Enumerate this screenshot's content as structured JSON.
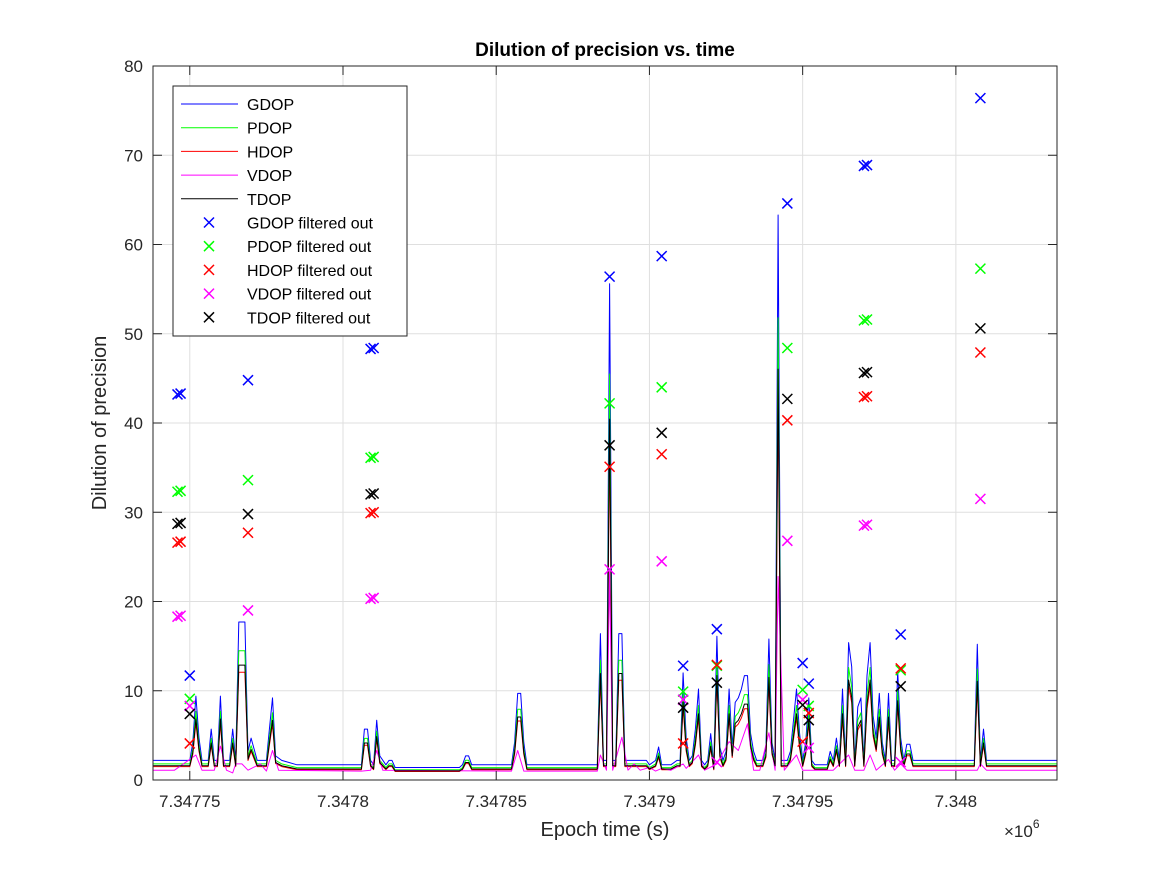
{
  "chart_data": {
    "type": "line",
    "title": "Dilution of precision vs. time",
    "xlabel": "Epoch time (s)",
    "ylabel": "Dilution of precision",
    "x_exponent_label": "×10",
    "x_exponent_power": "6",
    "x_scale": 1000000,
    "xlim": [
      7.347738,
      7.348033
    ],
    "ylim": [
      0,
      80
    ],
    "grid": true,
    "legend_position": "top-left",
    "x_ticks": [
      7.34775,
      7.3478,
      7.34785,
      7.3479,
      7.34795,
      7.348
    ],
    "x_tick_labels": [
      "7.34775",
      "7.3478",
      "7.34785",
      "7.3479",
      "7.34795",
      "7.348"
    ],
    "y_ticks": [
      0,
      10,
      20,
      30,
      40,
      50,
      60,
      70,
      80
    ],
    "y_tick_labels": [
      "0",
      "10",
      "20",
      "30",
      "40",
      "50",
      "60",
      "70",
      "80"
    ],
    "series": [
      {
        "name": "GDOP",
        "kind": "line",
        "color": "#0000ff",
        "ref": "GDOP",
        "base": 2.2
      },
      {
        "name": "PDOP",
        "kind": "line",
        "color": "#00ff00",
        "ref": "GDOP",
        "base": 1.8
      },
      {
        "name": "HDOP",
        "kind": "line",
        "color": "#ff0000",
        "ref": "GDOP",
        "base": 1.5
      },
      {
        "name": "VDOP",
        "kind": "line",
        "color": "#ff00ff",
        "ref": "VDOP",
        "base": 1.1
      },
      {
        "name": "TDOP",
        "kind": "line",
        "color": "#000000",
        "ref": "GDOP",
        "base": 1.6
      },
      {
        "name": "GDOP filtered out",
        "kind": "marker",
        "color": "#0000ff",
        "x": [
          7.347746,
          7.347747,
          7.34775,
          7.347769,
          7.347809,
          7.34781,
          7.347887,
          7.347904,
          7.347911,
          7.347922,
          7.347945,
          7.34795,
          7.347952,
          7.34797,
          7.347971,
          7.347982,
          7.348008
        ],
        "y": [
          43.2,
          43.3,
          11.7,
          44.8,
          48.3,
          48.4,
          56.4,
          58.7,
          12.8,
          16.9,
          64.6,
          13.1,
          10.8,
          68.8,
          68.9,
          16.3,
          76.4
        ]
      },
      {
        "name": "PDOP filtered out",
        "kind": "marker",
        "color": "#00ff00",
        "x": [
          7.347746,
          7.347747,
          7.34775,
          7.347769,
          7.347809,
          7.34781,
          7.347887,
          7.347904,
          7.347911,
          7.347922,
          7.347945,
          7.34795,
          7.347952,
          7.34797,
          7.347971,
          7.347982,
          7.348008
        ],
        "y": [
          32.3,
          32.4,
          9.1,
          33.6,
          36.1,
          36.2,
          42.2,
          44.0,
          9.9,
          12.8,
          48.4,
          10.1,
          8.3,
          51.5,
          51.6,
          12.3,
          57.3
        ]
      },
      {
        "name": "HDOP filtered out",
        "kind": "marker",
        "color": "#ff0000",
        "x": [
          7.347746,
          7.347747,
          7.34775,
          7.347769,
          7.347809,
          7.34781,
          7.347887,
          7.347904,
          7.347911,
          7.347922,
          7.347945,
          7.34795,
          7.347952,
          7.34797,
          7.347971,
          7.347982,
          7.348008
        ],
        "y": [
          26.6,
          26.7,
          4.1,
          27.7,
          29.9,
          30.0,
          35.1,
          36.5,
          4.1,
          12.9,
          40.3,
          4.3,
          7.5,
          42.9,
          43.0,
          12.5,
          47.9
        ]
      },
      {
        "name": "VDOP filtered out",
        "kind": "marker",
        "color": "#ff00ff",
        "x": [
          7.347746,
          7.347747,
          7.34775,
          7.347769,
          7.347809,
          7.34781,
          7.347887,
          7.347904,
          7.347911,
          7.347922,
          7.347945,
          7.34795,
          7.347952,
          7.34797,
          7.347971,
          7.347982,
          7.348008
        ],
        "y": [
          18.3,
          18.4,
          8.3,
          19.0,
          20.3,
          20.4,
          23.6,
          24.5,
          9.0,
          2.0,
          26.8,
          9.0,
          3.6,
          28.5,
          28.6,
          2.0,
          31.5
        ]
      },
      {
        "name": "TDOP filtered out",
        "kind": "marker",
        "color": "#000000",
        "x": [
          7.347746,
          7.347747,
          7.34775,
          7.347769,
          7.347809,
          7.34781,
          7.347887,
          7.347904,
          7.347911,
          7.347922,
          7.347945,
          7.34795,
          7.347952,
          7.34797,
          7.347971,
          7.347982,
          7.348008
        ],
        "y": [
          28.7,
          28.8,
          7.4,
          29.8,
          32.0,
          32.1,
          37.5,
          38.9,
          8.1,
          10.9,
          42.7,
          8.4,
          6.7,
          45.6,
          45.7,
          10.5,
          50.6
        ]
      }
    ],
    "reference_profiles": {
      "GDOP": [
        [
          7.347738,
          3.0
        ],
        [
          7.347745,
          3.0
        ],
        [
          7.347746,
          3.0
        ],
        [
          7.347749,
          3.0
        ],
        [
          7.34775,
          3.0
        ],
        [
          7.347751,
          5.0
        ],
        [
          7.347752,
          10.2
        ],
        [
          7.347753,
          5.5
        ],
        [
          7.347754,
          3.0
        ],
        [
          7.347756,
          3.0
        ],
        [
          7.347757,
          6.5
        ],
        [
          7.347758,
          3.0
        ],
        [
          7.347759,
          3.0
        ],
        [
          7.34776,
          10.2
        ],
        [
          7.347761,
          3.0
        ],
        [
          7.347763,
          3.0
        ],
        [
          7.347764,
          6.5
        ],
        [
          7.347765,
          3.0
        ],
        [
          7.347766,
          18.5
        ],
        [
          7.347768,
          18.5
        ],
        [
          7.347769,
          4.0
        ],
        [
          7.34777,
          5.5
        ],
        [
          7.347772,
          3.0
        ],
        [
          7.347775,
          3.0
        ],
        [
          7.347776,
          6.5
        ],
        [
          7.347777,
          10.0
        ],
        [
          7.347778,
          3.5
        ],
        [
          7.34778,
          3.0
        ],
        [
          7.347785,
          2.5
        ],
        [
          7.347806,
          2.5
        ],
        [
          7.347807,
          6.5
        ],
        [
          7.347808,
          6.5
        ],
        [
          7.347809,
          3.0
        ],
        [
          7.34781,
          2.5
        ],
        [
          7.347811,
          7.5
        ],
        [
          7.347812,
          3.5
        ],
        [
          7.347814,
          2.5
        ],
        [
          7.347815,
          3.0
        ],
        [
          7.347816,
          3.0
        ],
        [
          7.347817,
          2.2
        ],
        [
          7.347838,
          2.2
        ],
        [
          7.347839,
          2.5
        ],
        [
          7.34784,
          3.5
        ],
        [
          7.347841,
          3.5
        ],
        [
          7.347842,
          2.5
        ],
        [
          7.347855,
          2.5
        ],
        [
          7.347856,
          5.0
        ],
        [
          7.347857,
          10.5
        ],
        [
          7.347858,
          10.5
        ],
        [
          7.347859,
          5.0
        ],
        [
          7.34786,
          2.5
        ],
        [
          7.347883,
          2.5
        ],
        [
          7.347884,
          17.2
        ],
        [
          7.347885,
          3.0
        ],
        [
          7.347886,
          3.0
        ],
        [
          7.347887,
          56.4
        ],
        [
          7.347888,
          3.0
        ],
        [
          7.347889,
          3.0
        ],
        [
          7.34789,
          17.2
        ],
        [
          7.347891,
          17.2
        ],
        [
          7.347892,
          3.0
        ],
        [
          7.347899,
          3.0
        ],
        [
          7.3479,
          2.5
        ],
        [
          7.347902,
          3.0
        ],
        [
          7.347903,
          4.5
        ],
        [
          7.347904,
          2.5
        ],
        [
          7.347906,
          2.5
        ],
        [
          7.347907,
          2.5
        ],
        [
          7.347909,
          3.0
        ],
        [
          7.34791,
          3.0
        ],
        [
          7.347911,
          12.8
        ],
        [
          7.347912,
          5.5
        ],
        [
          7.347913,
          3.0
        ],
        [
          7.347914,
          3.5
        ],
        [
          7.347915,
          6.5
        ],
        [
          7.347916,
          11.0
        ],
        [
          7.347917,
          3.0
        ],
        [
          7.347918,
          2.5
        ],
        [
          7.347919,
          3.0
        ],
        [
          7.34792,
          6.0
        ],
        [
          7.347921,
          2.5
        ],
        [
          7.347922,
          16.9
        ],
        [
          7.347923,
          4.5
        ],
        [
          7.347924,
          3.0
        ],
        [
          7.347925,
          4.0
        ],
        [
          7.347926,
          11.0
        ],
        [
          7.347927,
          4.5
        ],
        [
          7.347928,
          9.5
        ],
        [
          7.347929,
          10.0
        ],
        [
          7.34793,
          11.0
        ],
        [
          7.347931,
          12.5
        ],
        [
          7.347932,
          12.5
        ],
        [
          7.347933,
          6.0
        ],
        [
          7.347934,
          4.0
        ],
        [
          7.347935,
          3.0
        ],
        [
          7.347937,
          3.0
        ],
        [
          7.347938,
          4.5
        ],
        [
          7.347939,
          16.6
        ],
        [
          7.34794,
          5.0
        ],
        [
          7.347941,
          3.0
        ],
        [
          7.347942,
          64.1
        ],
        [
          7.347943,
          3.0
        ],
        [
          7.347945,
          3.0
        ],
        [
          7.347946,
          4.0
        ],
        [
          7.347947,
          7.5
        ],
        [
          7.347948,
          11.0
        ],
        [
          7.347949,
          6.0
        ],
        [
          7.34795,
          3.0
        ],
        [
          7.347951,
          5.0
        ],
        [
          7.347952,
          10.0
        ],
        [
          7.347953,
          3.0
        ],
        [
          7.347954,
          2.5
        ],
        [
          7.347958,
          2.5
        ],
        [
          7.347959,
          4.0
        ],
        [
          7.34796,
          3.0
        ],
        [
          7.347961,
          5.5
        ],
        [
          7.347962,
          3.0
        ],
        [
          7.347963,
          11.0
        ],
        [
          7.347964,
          3.0
        ],
        [
          7.347965,
          16.2
        ],
        [
          7.347966,
          13.5
        ],
        [
          7.347967,
          3.0
        ],
        [
          7.347968,
          9.0
        ],
        [
          7.347969,
          10.0
        ],
        [
          7.34797,
          3.0
        ],
        [
          7.347971,
          12.5
        ],
        [
          7.347972,
          16.2
        ],
        [
          7.347973,
          8.0
        ],
        [
          7.347974,
          5.5
        ],
        [
          7.347975,
          10.5
        ],
        [
          7.347976,
          5.0
        ],
        [
          7.347977,
          3.0
        ],
        [
          7.347978,
          10.5
        ],
        [
          7.347979,
          3.0
        ],
        [
          7.34798,
          3.0
        ],
        [
          7.347981,
          13.0
        ],
        [
          7.347982,
          5.5
        ],
        [
          7.347983,
          3.0
        ],
        [
          7.347984,
          4.8
        ],
        [
          7.347985,
          4.8
        ],
        [
          7.347986,
          3.0
        ],
        [
          7.348006,
          3.0
        ],
        [
          7.348007,
          16.0
        ],
        [
          7.348008,
          3.0
        ],
        [
          7.348009,
          6.5
        ],
        [
          7.34801,
          3.0
        ],
        [
          7.348033,
          3.0
        ]
      ],
      "VDOP": [
        [
          7.347738,
          1.3
        ],
        [
          7.347745,
          1.3
        ],
        [
          7.347752,
          3.0
        ],
        [
          7.347754,
          1.3
        ],
        [
          7.347758,
          1.3
        ],
        [
          7.34776,
          4.0
        ],
        [
          7.347762,
          1.3
        ],
        [
          7.347764,
          1.0
        ],
        [
          7.347765,
          2.0
        ],
        [
          7.347767,
          2.0
        ],
        [
          7.347769,
          1.3
        ],
        [
          7.347773,
          2.0
        ],
        [
          7.347775,
          1.2
        ],
        [
          7.347777,
          3.5
        ],
        [
          7.347779,
          1.3
        ],
        [
          7.347806,
          1.2
        ],
        [
          7.347809,
          1.3
        ],
        [
          7.347811,
          3.5
        ],
        [
          7.347813,
          1.3
        ],
        [
          7.347855,
          1.2
        ],
        [
          7.347857,
          3.5
        ],
        [
          7.347859,
          1.2
        ],
        [
          7.347883,
          1.2
        ],
        [
          7.347884,
          3.0
        ],
        [
          7.347886,
          1.3
        ],
        [
          7.347887,
          23.6
        ],
        [
          7.347888,
          1.3
        ],
        [
          7.347891,
          5.0
        ],
        [
          7.347893,
          1.3
        ],
        [
          7.347895,
          2.0
        ],
        [
          7.347897,
          1.3
        ],
        [
          7.3479,
          1.6
        ],
        [
          7.347902,
          1.2
        ],
        [
          7.347904,
          1.5
        ],
        [
          7.347907,
          1.3
        ],
        [
          7.347911,
          2.0
        ],
        [
          7.347912,
          1.5
        ],
        [
          7.347916,
          3.0
        ],
        [
          7.347918,
          1.3
        ],
        [
          7.347922,
          2.0
        ],
        [
          7.347926,
          4.5
        ],
        [
          7.347929,
          3.5
        ],
        [
          7.347932,
          6.5
        ],
        [
          7.347934,
          1.3
        ],
        [
          7.347936,
          1.3
        ],
        [
          7.347939,
          5.5
        ],
        [
          7.347941,
          1.3
        ],
        [
          7.347942,
          23.0
        ],
        [
          7.347944,
          1.3
        ],
        [
          7.347948,
          3.0
        ],
        [
          7.34795,
          1.3
        ],
        [
          7.347953,
          1.3
        ],
        [
          7.347955,
          1.3
        ],
        [
          7.347958,
          1.3
        ],
        [
          7.34796,
          1.3
        ],
        [
          7.347965,
          3.0
        ],
        [
          7.347967,
          1.3
        ],
        [
          7.34797,
          1.3
        ],
        [
          7.347972,
          3.0
        ],
        [
          7.347974,
          1.3
        ],
        [
          7.347978,
          2.5
        ],
        [
          7.34798,
          1.3
        ],
        [
          7.347982,
          2.0
        ],
        [
          7.347984,
          1.3
        ],
        [
          7.348007,
          1.3
        ],
        [
          7.348008,
          2.0
        ],
        [
          7.34801,
          1.3
        ],
        [
          7.348033,
          1.3
        ]
      ]
    }
  }
}
